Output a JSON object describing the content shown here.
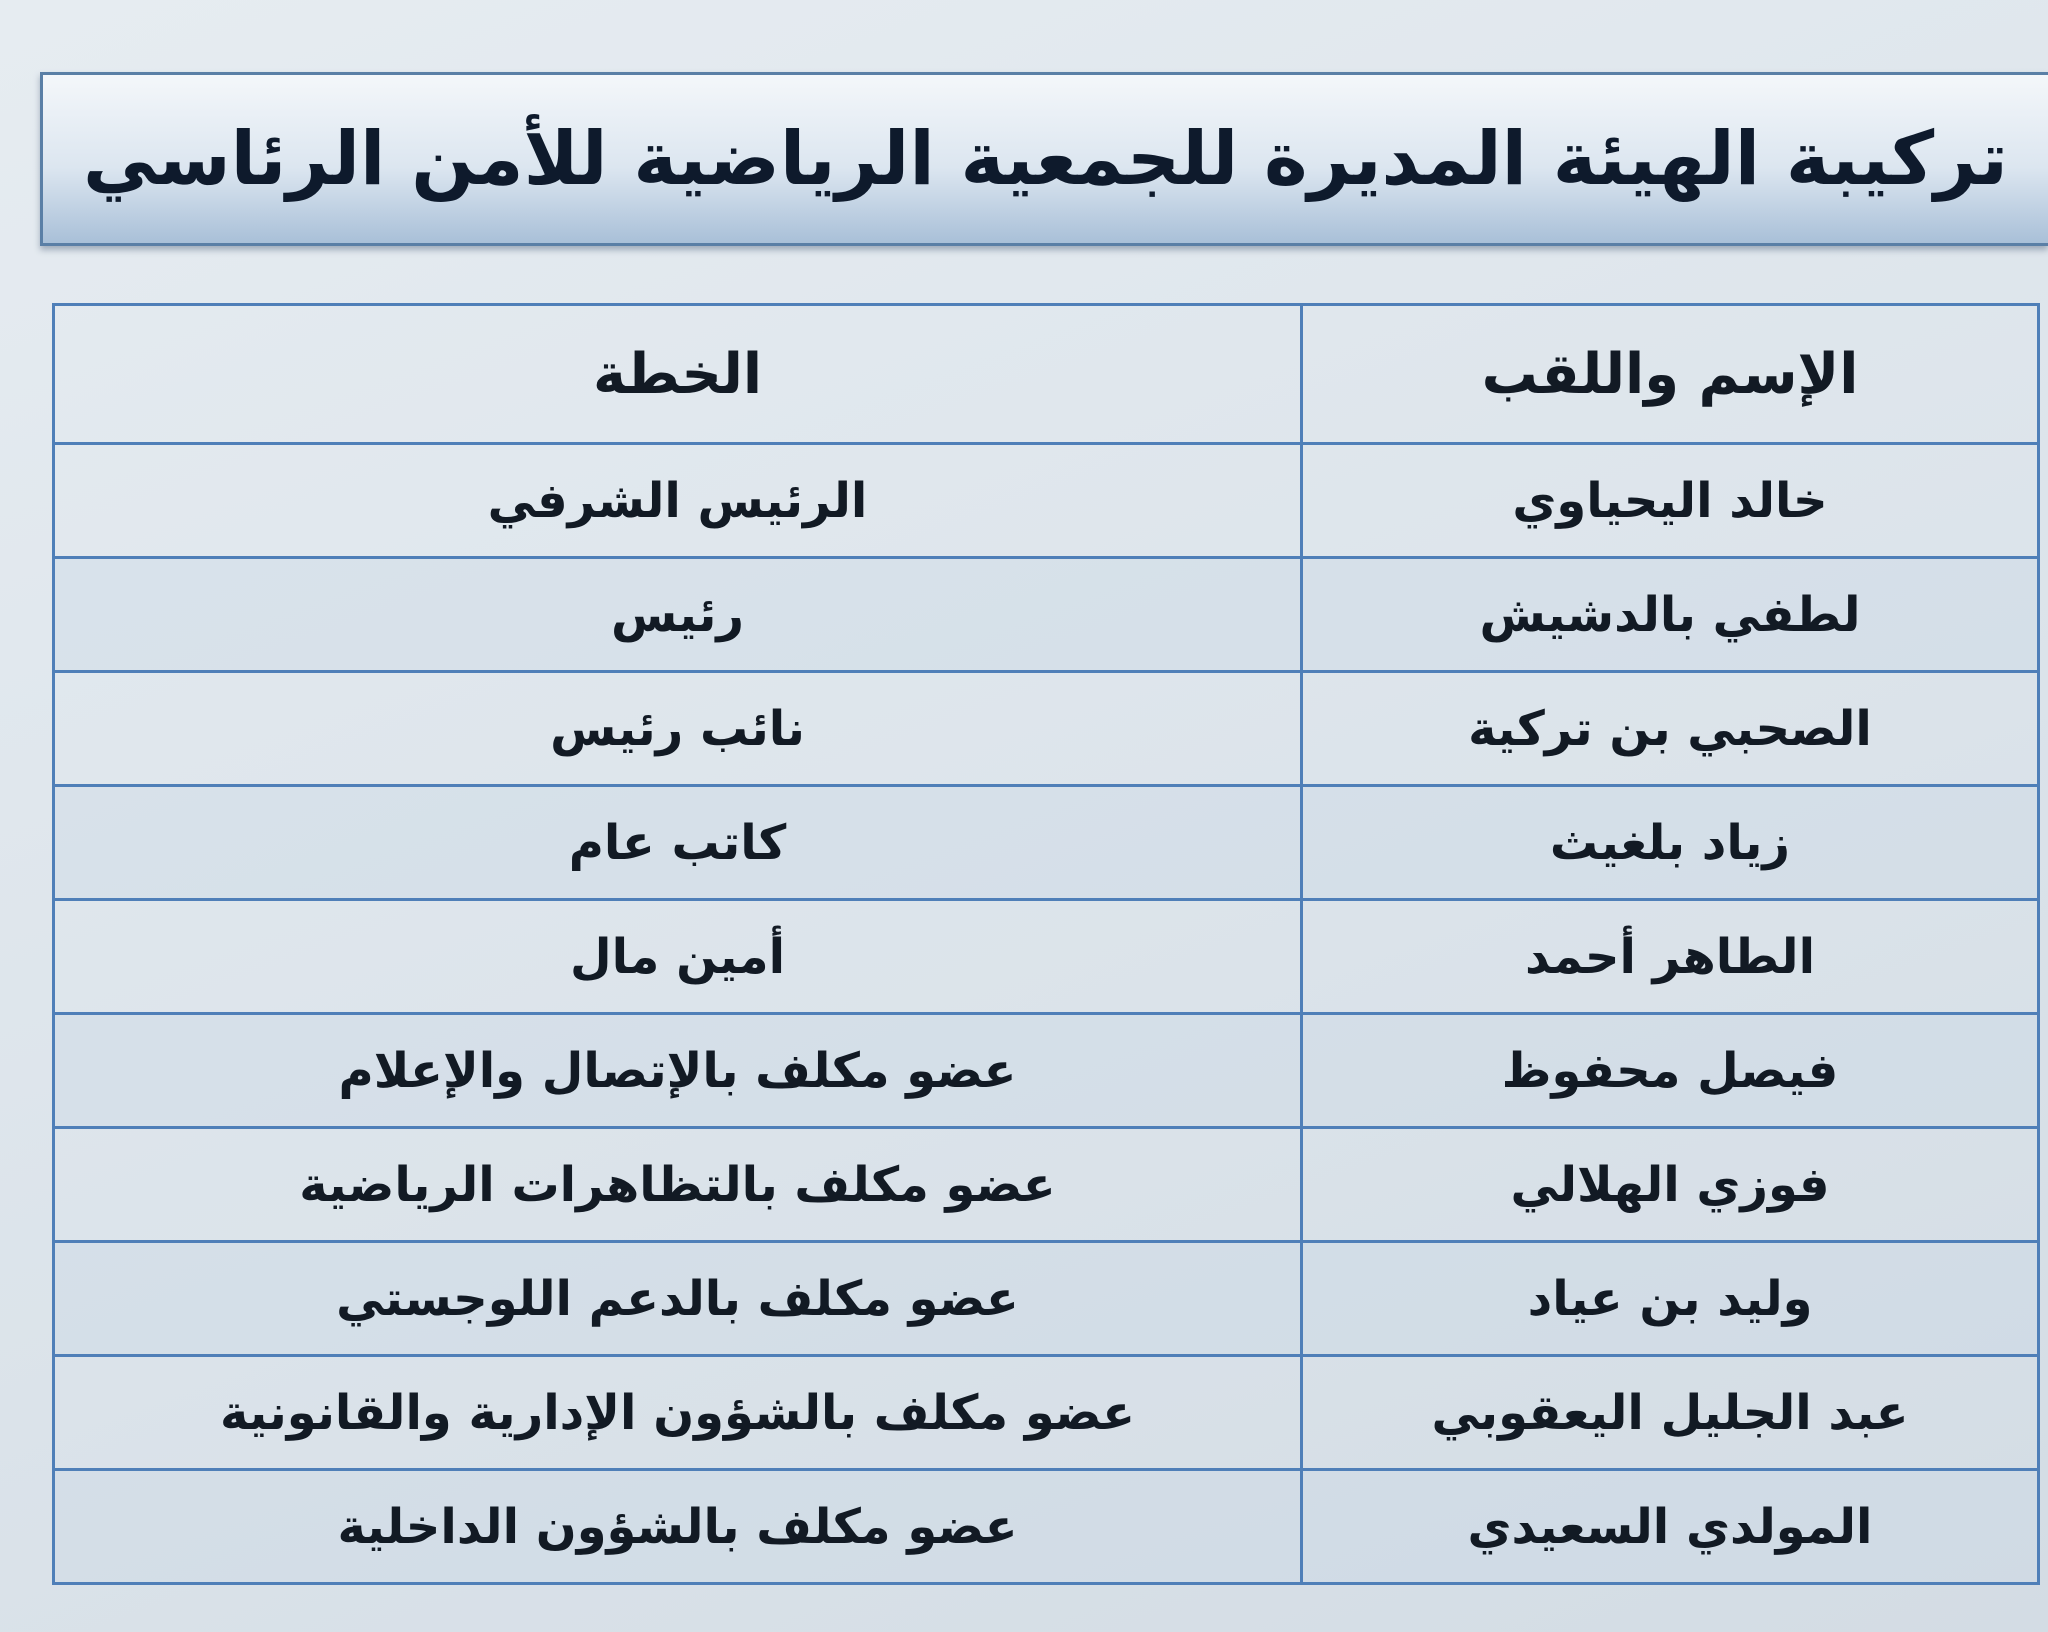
{
  "header": {
    "title": "تركيبة الهيئة المديرة للجمعية الرياضية للأمن الرئاسي"
  },
  "table": {
    "columns": [
      "الإسم واللقب",
      "الخطة"
    ],
    "rows": [
      [
        "خالد اليحياوي",
        "الرئيس الشرفي"
      ],
      [
        "لطفي بالدشيش",
        "رئيس"
      ],
      [
        "الصحبي بن تركية",
        "نائب رئيس"
      ],
      [
        "زياد بلغيث",
        "كاتب عام"
      ],
      [
        "الطاهر أحمد",
        "أمين مال"
      ],
      [
        "فيصل محفوظ",
        "عضو مكلف بالإتصال والإعلام"
      ],
      [
        "فوزي الهلالي",
        "عضو مكلف بالتظاهرات الرياضية"
      ],
      [
        "وليد بن عياد",
        "عضو مكلف بالدعم اللوجستي"
      ],
      [
        "عبد الجليل اليعقوبي",
        "عضو مكلف بالشؤون الإدارية والقانونية"
      ],
      [
        "المولدي السعيدي",
        "عضو مكلف بالشؤون الداخلية"
      ]
    ]
  }
}
